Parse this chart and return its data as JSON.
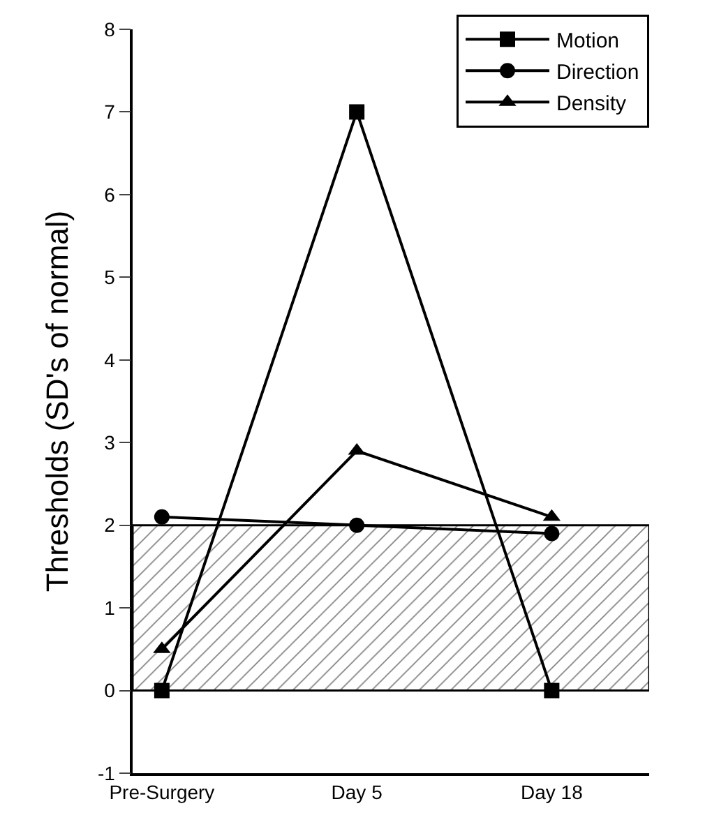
{
  "chart_data": {
    "type": "line",
    "ylabel": "Thresholds (SD's of normal)",
    "categories": [
      "Pre-Surgery",
      "Day 5",
      "Day 18"
    ],
    "series": [
      {
        "name": "Motion",
        "color": "#000000",
        "marker": "square",
        "values": [
          0,
          7,
          0
        ]
      },
      {
        "name": "Direction",
        "color": "#000000",
        "marker": "circle",
        "values": [
          2.1,
          2.0,
          1.9
        ]
      },
      {
        "name": "Density",
        "color": "#000000",
        "marker": "triangle",
        "values": [
          0.5,
          2.9,
          2.1
        ]
      }
    ],
    "ylim": [
      -1,
      8
    ],
    "yticks": [
      -1,
      0,
      1,
      2,
      3,
      4,
      5,
      6,
      7,
      8
    ],
    "bands": [
      {
        "axis": "y",
        "from": 0,
        "to": 2,
        "color": "#000000"
      }
    ],
    "legend": "top right",
    "line_style": "solid"
  }
}
